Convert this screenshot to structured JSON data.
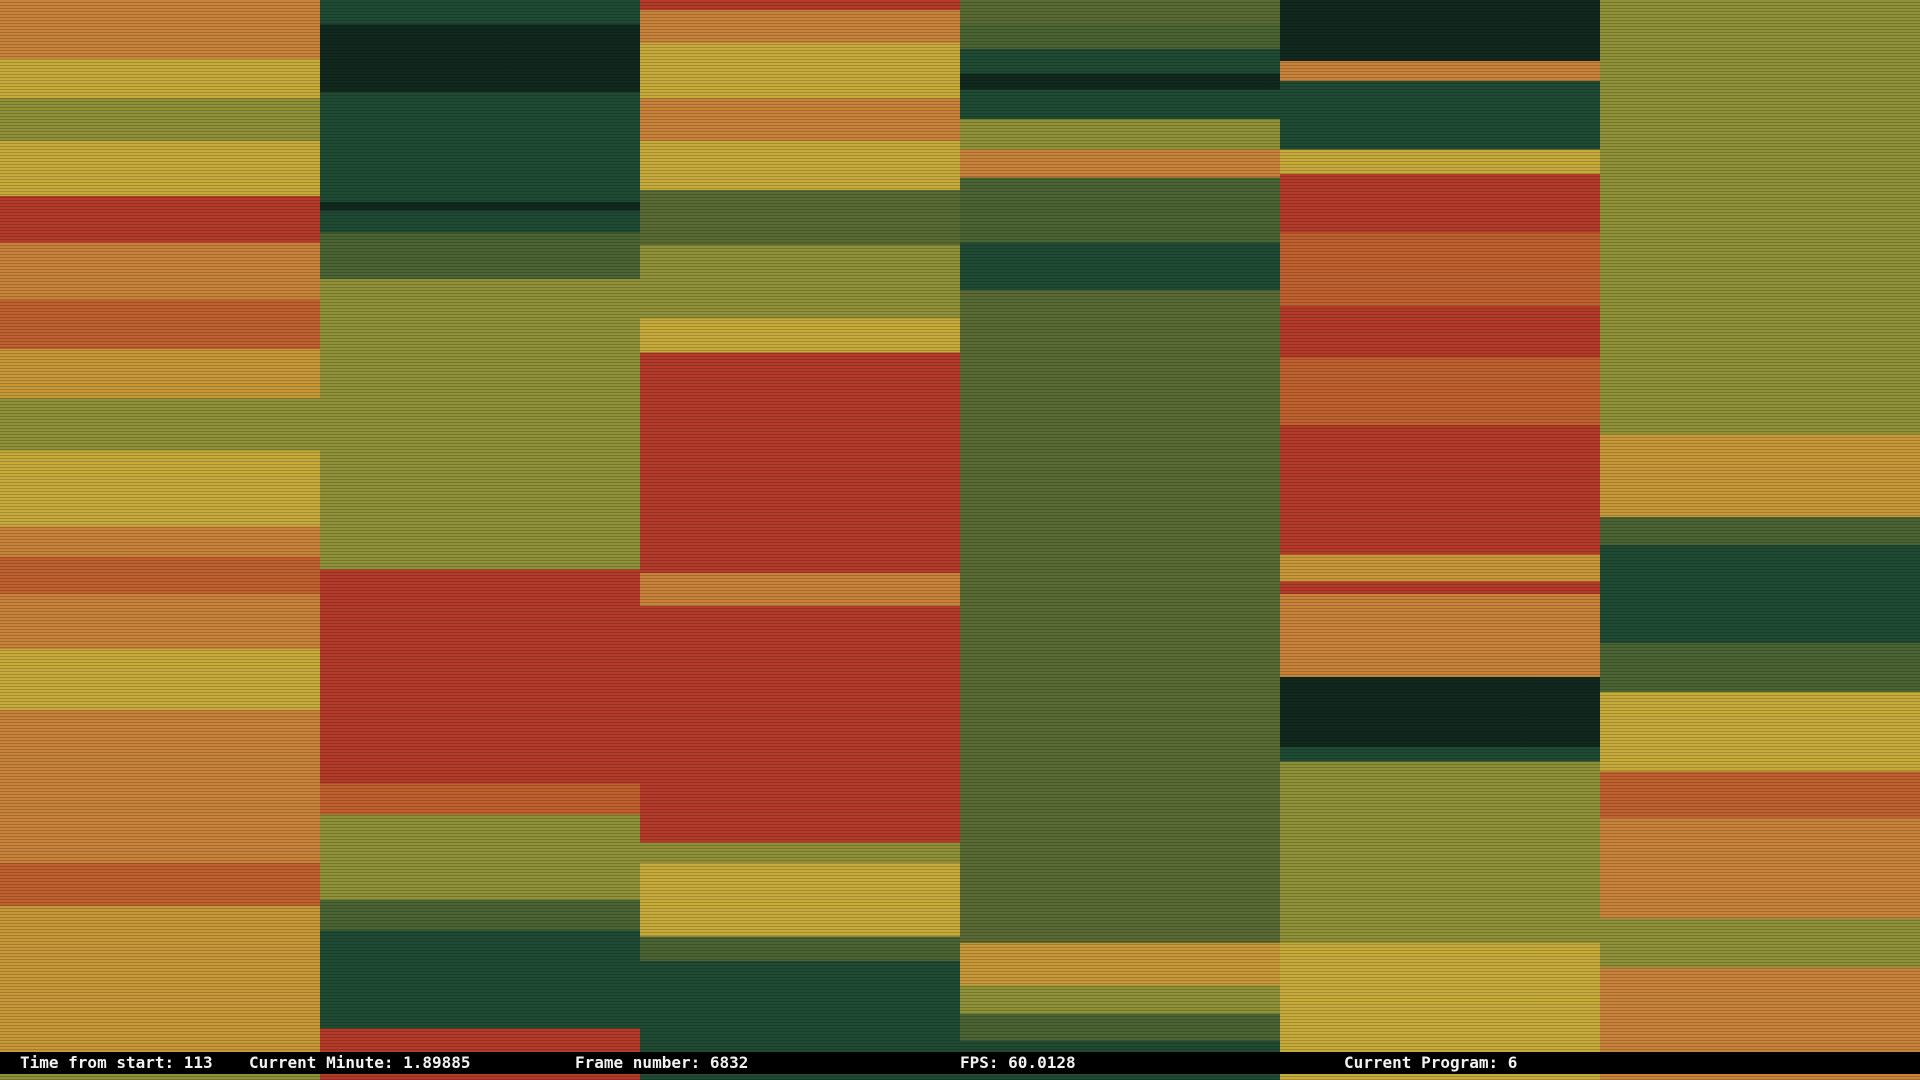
{
  "status_bar": {
    "time_from_start": "Time from start: 113",
    "current_minute": "Current Minute: 1.89885",
    "frame_number": "Frame number: 6832",
    "fps": "FPS: 60.0128",
    "current_program": "Current Program: 6"
  }
}
